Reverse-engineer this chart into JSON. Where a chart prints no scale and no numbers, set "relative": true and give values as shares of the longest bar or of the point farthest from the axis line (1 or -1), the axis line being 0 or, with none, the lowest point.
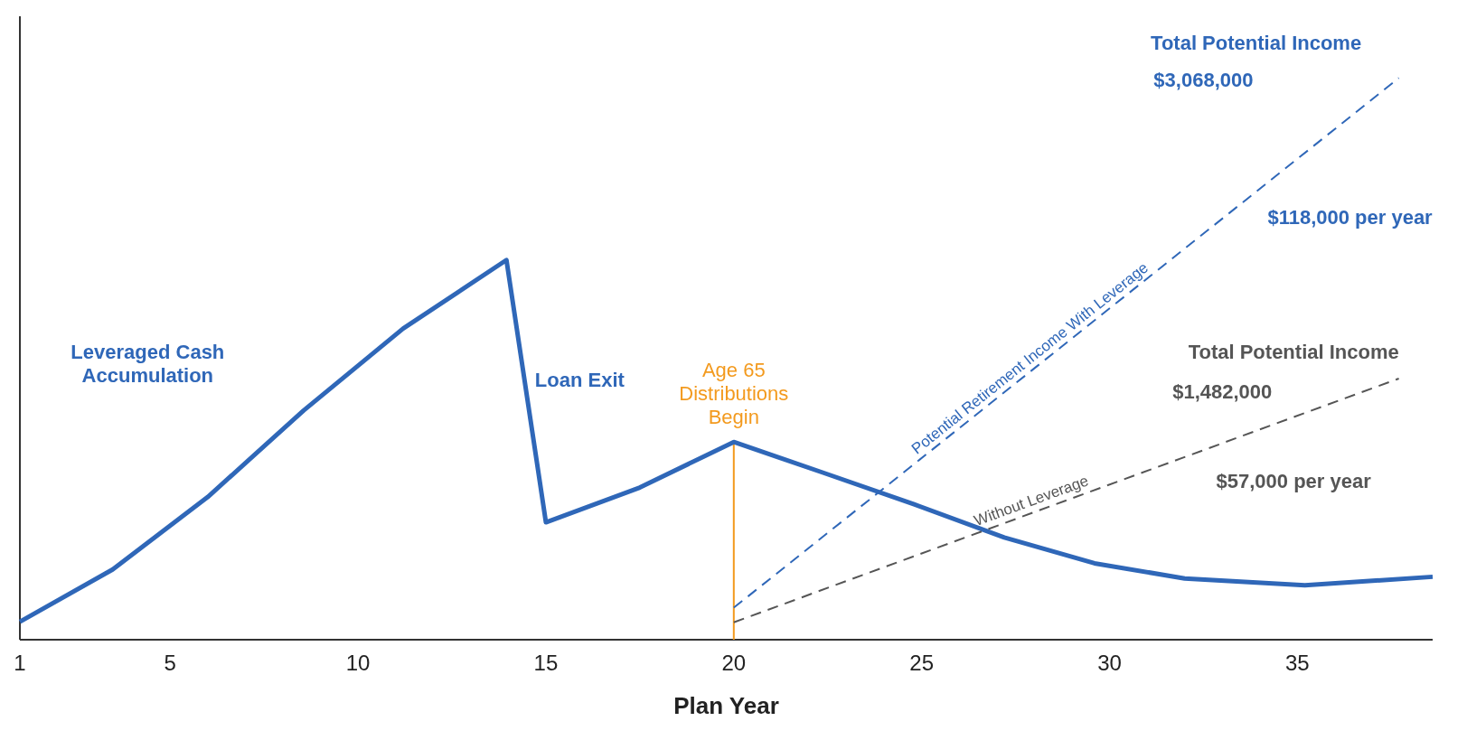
{
  "chart_data": {
    "type": "line",
    "relative": true,
    "xlabel": "Plan Year",
    "xlim": [
      1,
      38.6
    ],
    "xticks": [
      1,
      5,
      10,
      15,
      20,
      25,
      30,
      35
    ],
    "series": [
      {
        "color": "#2f67b8",
        "x": [
          1,
          3.47,
          6,
          8.55,
          11.2,
          13.95,
          15,
          17.5,
          20,
          22.35,
          24.8,
          27.2,
          29.6,
          32,
          35.2,
          38.6
        ],
        "values": [
          0.032,
          0.125,
          0.254,
          0.408,
          0.554,
          0.676,
          0.209,
          0.271,
          0.352,
          0.298,
          0.241,
          0.182,
          0.136,
          0.109,
          0.097,
          0.112
        ]
      },
      {
        "name": "Potential Retirement Income With Leverage",
        "color": "#2f67b8",
        "line_style": "dashed",
        "x": [
          20,
          37.7
        ],
        "values": [
          0.057,
          1
        ]
      },
      {
        "name": "Without Leverage",
        "color": "#555555",
        "line_style": "dashed",
        "x": [
          20,
          37.7
        ],
        "values": [
          0.031,
          0.465
        ]
      }
    ],
    "ref_lines": [
      {
        "axis": "x",
        "value": 20,
        "label": "Age 65 Distributions Begin",
        "color": "#f39a1e"
      }
    ],
    "annotations": [
      "Leveraged Cash Accumulation",
      "Loan Exit",
      "Total Potential Income",
      "$3,068,000",
      "$118,000 per year",
      "Total Potential Income",
      "$1,482,000",
      "$57,000 per year"
    ]
  }
}
